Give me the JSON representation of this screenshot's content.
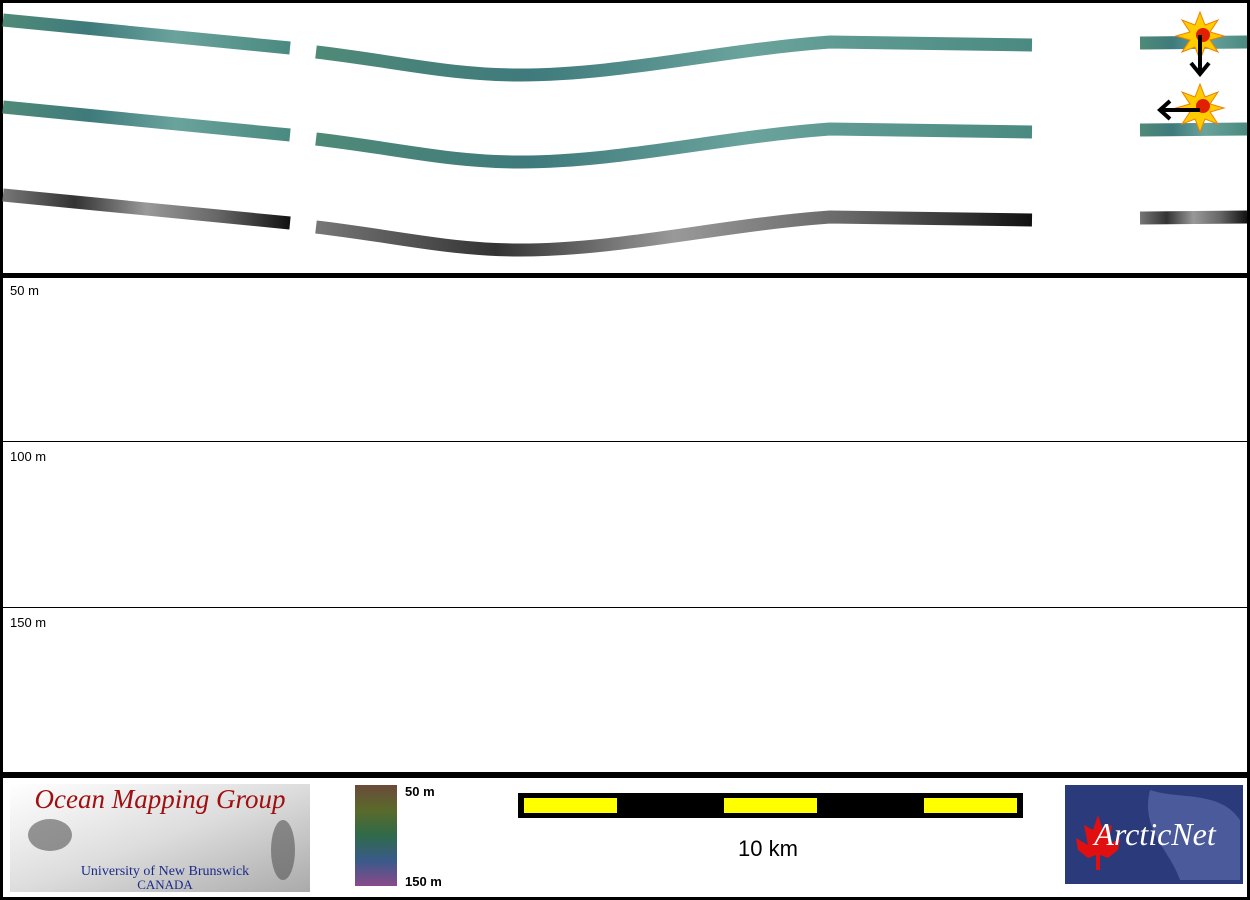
{
  "depth_panel": {
    "labels": [
      "50 m",
      "100 m",
      "150 m"
    ]
  },
  "footer": {
    "logo": {
      "title": "Ocean Mapping Group",
      "line1": "University of New Brunswick",
      "line2": "CANADA"
    },
    "colorbar": {
      "top": "50 m",
      "bottom": "150 m"
    },
    "scale_bar": {
      "label": "10 km"
    },
    "partner": {
      "name": "ArcticNet"
    }
  }
}
